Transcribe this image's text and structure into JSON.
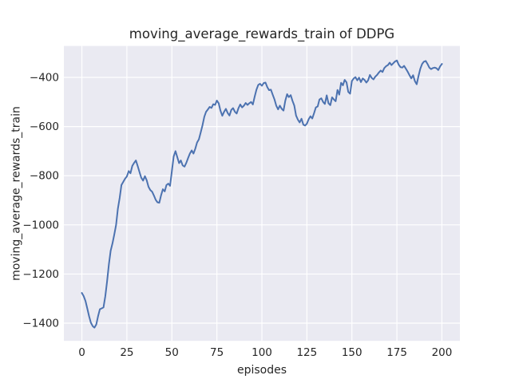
{
  "chart_data": {
    "type": "line",
    "title": "moving_average_rewards_train of DDPG",
    "xlabel": "episodes",
    "ylabel": "moving_average_rewards_train",
    "x_start": 0,
    "x_step": 1,
    "x_end": 200,
    "values": [
      -1277,
      -1290,
      -1310,
      -1340,
      -1372,
      -1398,
      -1412,
      -1418,
      -1405,
      -1372,
      -1343,
      -1340,
      -1336,
      -1290,
      -1230,
      -1160,
      -1105,
      -1075,
      -1040,
      -1000,
      -935,
      -890,
      -838,
      -825,
      -812,
      -803,
      -781,
      -790,
      -760,
      -748,
      -738,
      -760,
      -785,
      -808,
      -820,
      -802,
      -818,
      -845,
      -858,
      -865,
      -880,
      -898,
      -908,
      -910,
      -880,
      -855,
      -864,
      -838,
      -832,
      -841,
      -780,
      -722,
      -700,
      -724,
      -749,
      -738,
      -758,
      -763,
      -748,
      -728,
      -710,
      -697,
      -710,
      -690,
      -665,
      -652,
      -625,
      -595,
      -560,
      -540,
      -530,
      -520,
      -524,
      -509,
      -512,
      -494,
      -505,
      -535,
      -556,
      -540,
      -528,
      -545,
      -555,
      -532,
      -525,
      -540,
      -547,
      -525,
      -510,
      -522,
      -515,
      -504,
      -512,
      -505,
      -500,
      -510,
      -478,
      -450,
      -430,
      -426,
      -434,
      -423,
      -421,
      -440,
      -452,
      -450,
      -470,
      -490,
      -515,
      -530,
      -515,
      -528,
      -535,
      -495,
      -468,
      -480,
      -472,
      -495,
      -515,
      -555,
      -572,
      -583,
      -568,
      -592,
      -596,
      -588,
      -570,
      -558,
      -567,
      -545,
      -522,
      -518,
      -490,
      -485,
      -500,
      -508,
      -473,
      -505,
      -513,
      -481,
      -490,
      -497,
      -451,
      -470,
      -422,
      -432,
      -410,
      -420,
      -459,
      -466,
      -415,
      -404,
      -399,
      -412,
      -401,
      -419,
      -404,
      -410,
      -421,
      -412,
      -390,
      -402,
      -408,
      -397,
      -390,
      -380,
      -372,
      -378,
      -362,
      -354,
      -350,
      -340,
      -350,
      -342,
      -335,
      -331,
      -348,
      -358,
      -360,
      -353,
      -365,
      -377,
      -391,
      -404,
      -391,
      -415,
      -428,
      -395,
      -365,
      -345,
      -336,
      -333,
      -345,
      -360,
      -366,
      -362,
      -360,
      -363,
      -370,
      -355,
      -345
    ],
    "xticks": [
      0,
      25,
      50,
      75,
      100,
      125,
      150,
      175,
      200
    ],
    "yticks": [
      -1400,
      -1200,
      -1000,
      -800,
      -600,
      -400
    ],
    "xlim": [
      -10,
      210
    ],
    "ylim": [
      -1472,
      -272
    ],
    "grid": true,
    "legend": null,
    "style": {
      "line_color": "#4c72b0",
      "axes_bg": "#eaeaf2",
      "grid_color": "#ffffff",
      "fig_bg": "#ffffff",
      "text_color": "#262626"
    }
  }
}
